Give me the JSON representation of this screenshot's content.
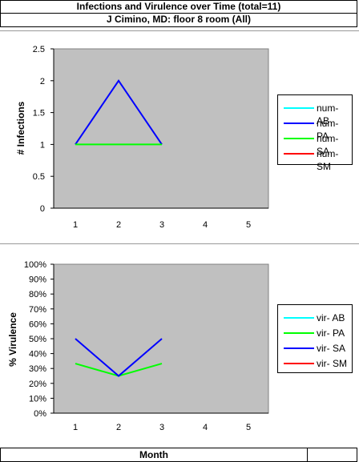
{
  "header": {
    "title": "Infections and Virulence over Time (total=11)",
    "subtitle": "J Cimino, MD: floor 8 room (All)"
  },
  "footer": {
    "xlabel": "Month"
  },
  "chart_data": [
    {
      "type": "line",
      "ylabel": "# Infections",
      "ylim": [
        0,
        2.5
      ],
      "yticks": [
        "0",
        "0.5",
        "1",
        "1.5",
        "2",
        "2.5"
      ],
      "ytick_values": [
        0,
        0.5,
        1,
        1.5,
        2,
        2.5
      ],
      "categories": [
        "1",
        "2",
        "3",
        "4",
        "5"
      ],
      "grid": false,
      "plot_background": "#c0c0c0",
      "legend_position": "right",
      "series": [
        {
          "name": "num- AB",
          "color": "#00ffff",
          "values": [
            null,
            null,
            null,
            null,
            null
          ]
        },
        {
          "name": "num- PA",
          "color": "#0000ff",
          "values": [
            1,
            2,
            1,
            null,
            null
          ]
        },
        {
          "name": "num- SA",
          "color": "#00ff00",
          "values": [
            1,
            1,
            1,
            null,
            null
          ]
        },
        {
          "name": "num- SM",
          "color": "#ff0000",
          "values": [
            null,
            null,
            null,
            null,
            null
          ]
        }
      ]
    },
    {
      "type": "line",
      "ylabel": "% Virulence",
      "ylim": [
        0,
        100
      ],
      "yticks": [
        "0%",
        "10%",
        "20%",
        "30%",
        "40%",
        "50%",
        "60%",
        "70%",
        "80%",
        "90%",
        "100%"
      ],
      "ytick_values": [
        0,
        10,
        20,
        30,
        40,
        50,
        60,
        70,
        80,
        90,
        100
      ],
      "categories": [
        "1",
        "2",
        "3",
        "4",
        "5"
      ],
      "grid": false,
      "plot_background": "#c0c0c0",
      "legend_position": "right",
      "series": [
        {
          "name": "vir- AB",
          "color": "#00ffff",
          "values": [
            null,
            null,
            null,
            null,
            null
          ]
        },
        {
          "name": "vir- PA",
          "color": "#00ff00",
          "values": [
            33.3,
            25,
            33.3,
            null,
            null
          ]
        },
        {
          "name": "vir- SA",
          "color": "#0000ff",
          "values": [
            50,
            25,
            50,
            null,
            null
          ]
        },
        {
          "name": "vir- SM",
          "color": "#ff0000",
          "values": [
            null,
            null,
            null,
            null,
            null
          ]
        }
      ]
    }
  ]
}
